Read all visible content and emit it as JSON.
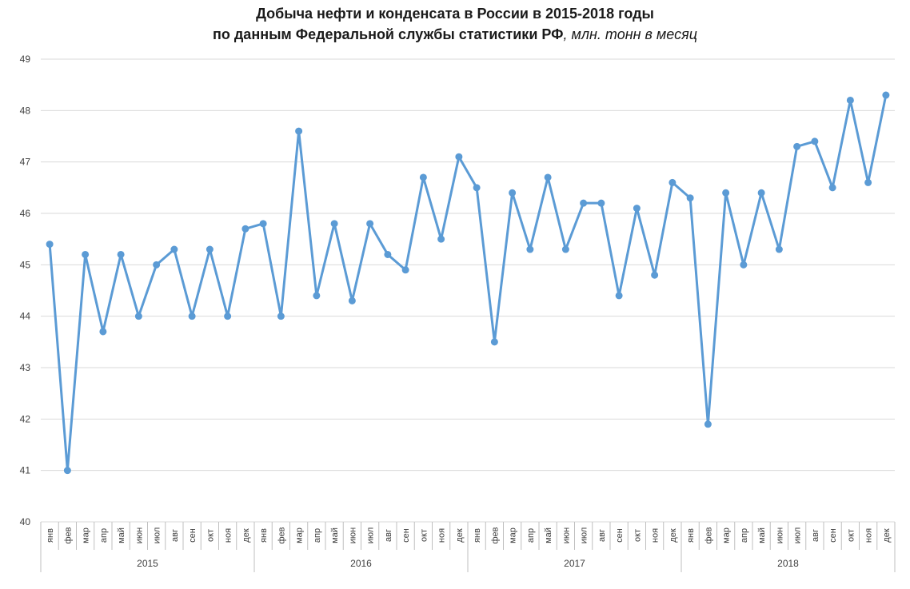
{
  "chart_data": {
    "type": "line",
    "title": "Добыча нефти и конденсата в России в 2015-2018 годы",
    "subtitle": "по данным Федеральной службы статистики РФ",
    "unit": ", млн. тонн в месяц",
    "xlabel": "",
    "ylabel": "",
    "ylim": [
      40,
      49
    ],
    "yticks": [
      "40",
      "41",
      "42",
      "43",
      "44",
      "45",
      "46",
      "47",
      "48",
      "49"
    ],
    "grid": true,
    "legend": "none",
    "line_color": "#5B9BD5",
    "months": [
      "янв",
      "фев",
      "мар",
      "апр",
      "май",
      "июн",
      "июл",
      "авг",
      "сен",
      "окт",
      "ноя",
      "дек"
    ],
    "years": [
      "2015",
      "2016",
      "2017",
      "2018"
    ],
    "series": [
      {
        "values": [
          45.4,
          41.0,
          45.2,
          43.7,
          45.2,
          44.0,
          45.0,
          45.3,
          44.0,
          45.3,
          44.0,
          45.7,
          45.8,
          44.0,
          47.6,
          44.4,
          45.8,
          44.3,
          45.8,
          45.2,
          44.9,
          46.7,
          45.5,
          47.1,
          46.5,
          43.5,
          46.4,
          45.3,
          46.7,
          45.3,
          46.2,
          46.2,
          44.4,
          46.1,
          44.8,
          46.6,
          46.3,
          41.9,
          46.4,
          45.0,
          46.4,
          45.3,
          47.3,
          47.4,
          46.5,
          48.2,
          46.6,
          48.3
        ]
      }
    ]
  }
}
